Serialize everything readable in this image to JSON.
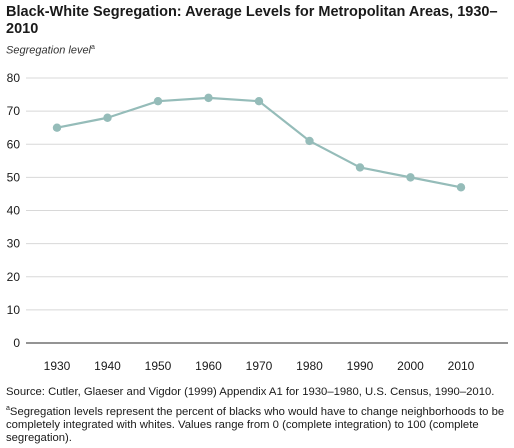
{
  "chart_data": {
    "type": "line",
    "title": "Black-White Segregation: Average Levels for Metropolitan Areas, 1930–2010",
    "ylabel": "Segregation level",
    "ylabel_marker": "a",
    "xlabel": "",
    "x": [
      1930,
      1940,
      1950,
      1960,
      1970,
      1980,
      1990,
      2000,
      2010
    ],
    "series": [
      {
        "values": [
          65,
          68,
          73,
          74,
          73,
          61,
          53,
          50,
          47
        ],
        "color": "#95bcb9"
      }
    ],
    "ylim": [
      0,
      80
    ],
    "yticks": [
      0,
      10,
      20,
      30,
      40,
      50,
      60,
      70,
      80
    ],
    "xticks": [
      "1930",
      "1940",
      "1950",
      "1960",
      "1970",
      "1980",
      "1990",
      "2000",
      "2010"
    ],
    "grid": true,
    "grid_color": "#d8d8d8"
  },
  "source": "Source: Cutler, Glaeser and Vigdor (1999) Appendix A1 for 1930–1980, U.S. Census, 1990–2010.",
  "footnote_marker": "a",
  "footnote": "Segregation levels represent the percent of blacks who would have to change neighborhoods to be completely integrated with whites. Values range from 0 (complete integration) to 100 (complete segregation)."
}
